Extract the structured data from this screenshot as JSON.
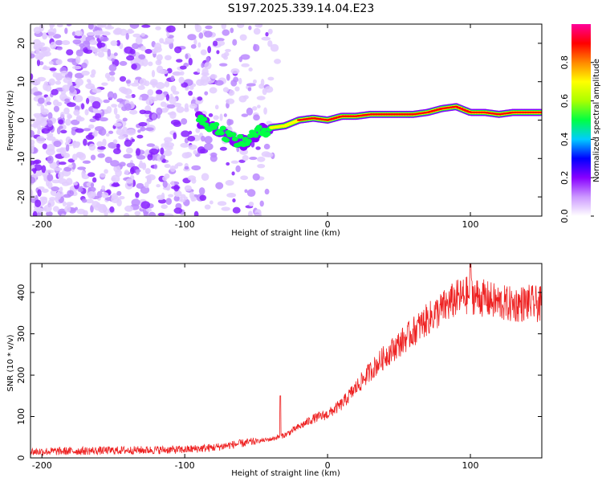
{
  "title": "S197.2025.339.14.04.E23",
  "chart_data": [
    {
      "type": "heatmap",
      "name": "spectrogram",
      "xlabel": "Height of straight line (km)",
      "ylabel": "Frequency (Hz)",
      "xlim": [
        -208,
        150
      ],
      "ylim": [
        -25,
        25
      ],
      "xticks": [
        -200,
        -100,
        0,
        100
      ],
      "yticks": [
        -20,
        -10,
        0,
        10,
        20
      ],
      "colorbar": {
        "label": "Normalized spectral amplitude",
        "ticks": [
          0.0,
          0.2,
          0.4,
          0.6,
          0.8
        ],
        "range": [
          0,
          1
        ],
        "colormap": [
          "#ffffff",
          "#cc99ff",
          "#8800ff",
          "#0000ff",
          "#00ccff",
          "#00ff44",
          "#aaff00",
          "#ffff00",
          "#ff8800",
          "#ff0000",
          "#ff0099"
        ]
      },
      "noise_region_x": [
        -208,
        -35
      ],
      "signal_track": [
        {
          "x": -90,
          "f": 0.0
        },
        {
          "x": -80,
          "f": -1.5
        },
        {
          "x": -70,
          "f": -4.0
        },
        {
          "x": -60,
          "f": -6.0
        },
        {
          "x": -50,
          "f": -3.5
        },
        {
          "x": -40,
          "f": -2.0
        },
        {
          "x": -30,
          "f": -1.5
        },
        {
          "x": -20,
          "f": 0.0
        },
        {
          "x": -10,
          "f": 0.5
        },
        {
          "x": 0,
          "f": 0.0
        },
        {
          "x": 10,
          "f": 1.0
        },
        {
          "x": 20,
          "f": 1.0
        },
        {
          "x": 30,
          "f": 1.5
        },
        {
          "x": 40,
          "f": 1.5
        },
        {
          "x": 50,
          "f": 1.5
        },
        {
          "x": 60,
          "f": 1.5
        },
        {
          "x": 70,
          "f": 2.0
        },
        {
          "x": 80,
          "f": 3.0
        },
        {
          "x": 90,
          "f": 3.5
        },
        {
          "x": 100,
          "f": 2.0
        },
        {
          "x": 110,
          "f": 2.0
        },
        {
          "x": 120,
          "f": 1.5
        },
        {
          "x": 130,
          "f": 2.0
        },
        {
          "x": 140,
          "f": 2.0
        },
        {
          "x": 150,
          "f": 2.0
        }
      ]
    },
    {
      "type": "line",
      "name": "snr",
      "xlabel": "Height of straight line (km)",
      "ylabel": "SNR (10 * v/v)",
      "xlim": [
        -208,
        150
      ],
      "ylim": [
        0,
        470
      ],
      "xticks": [
        -200,
        -100,
        0,
        100
      ],
      "yticks": [
        0,
        100,
        200,
        300,
        400
      ],
      "color": "#ee2222",
      "envelope": [
        {
          "x": -208,
          "y": 15
        },
        {
          "x": -150,
          "y": 18
        },
        {
          "x": -100,
          "y": 20
        },
        {
          "x": -80,
          "y": 25
        },
        {
          "x": -60,
          "y": 35
        },
        {
          "x": -40,
          "y": 45
        },
        {
          "x": -30,
          "y": 55
        },
        {
          "x": -20,
          "y": 75
        },
        {
          "x": -10,
          "y": 95
        },
        {
          "x": 0,
          "y": 105
        },
        {
          "x": 10,
          "y": 130
        },
        {
          "x": 20,
          "y": 170
        },
        {
          "x": 30,
          "y": 210
        },
        {
          "x": 40,
          "y": 245
        },
        {
          "x": 50,
          "y": 275
        },
        {
          "x": 60,
          "y": 305
        },
        {
          "x": 70,
          "y": 335
        },
        {
          "x": 80,
          "y": 360
        },
        {
          "x": 90,
          "y": 385
        },
        {
          "x": 100,
          "y": 395
        },
        {
          "x": 110,
          "y": 385
        },
        {
          "x": 120,
          "y": 375
        },
        {
          "x": 130,
          "y": 370
        },
        {
          "x": 140,
          "y": 375
        },
        {
          "x": 150,
          "y": 370
        }
      ],
      "spikes": [
        {
          "x": -33,
          "y": 150
        },
        {
          "x": 100,
          "y": 470
        }
      ]
    }
  ]
}
